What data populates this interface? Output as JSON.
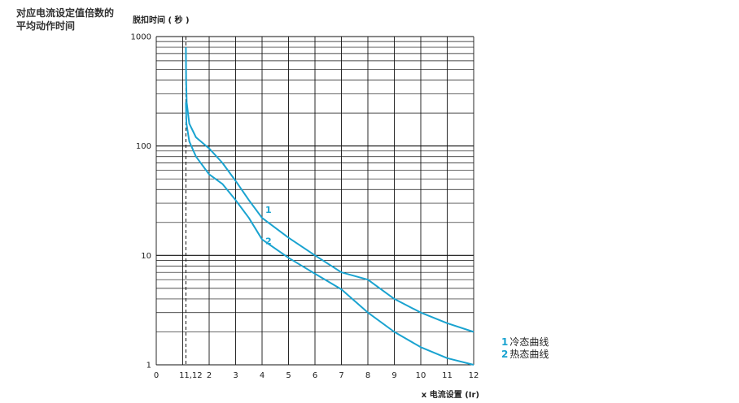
{
  "caption": "对应电流设定值倍数的\n平均动作时间",
  "chart_data": {
    "type": "line",
    "ylabel": "脱扣时间 ( 秒 )",
    "xlabel": "x 电流设置 (Ir)",
    "y_scale": "log",
    "ylim": [
      1,
      1000
    ],
    "xlim": [
      0,
      12
    ],
    "y_ticks": [
      1,
      10,
      100,
      1000
    ],
    "y_tick_labels": [
      "1",
      "10",
      "100",
      "1000"
    ],
    "x_ticks": [
      0,
      1,
      1.12,
      2,
      3,
      4,
      5,
      6,
      7,
      8,
      9,
      10,
      11,
      12
    ],
    "x_tick_labels": [
      "0",
      "1",
      "1,12",
      "2",
      "3",
      "4",
      "5",
      "6",
      "7",
      "8",
      "9",
      "10",
      "11",
      "12"
    ],
    "reference_line_x": 1.12,
    "grid": true,
    "series": [
      {
        "name": "冷态曲线",
        "number": "1",
        "x": [
          1.12,
          1.13,
          1.15,
          1.25,
          1.5,
          2.0,
          2.5,
          3.0,
          3.5,
          4.0,
          5.0,
          6.0,
          7.0,
          8.0,
          9.0,
          10.0,
          11.0,
          12.0
        ],
        "y": [
          800,
          400,
          250,
          160,
          120,
          95,
          70,
          48,
          32,
          22,
          14.5,
          10,
          7,
          6,
          4,
          3,
          2.4,
          2
        ]
      },
      {
        "name": "热态曲线",
        "number": "2",
        "x": [
          1.12,
          1.14,
          1.25,
          1.5,
          2.0,
          2.5,
          3.0,
          3.5,
          4.0,
          5.0,
          6.0,
          7.0,
          8.0,
          9.0,
          10.0,
          11.0,
          12.0
        ],
        "y": [
          250,
          160,
          110,
          80,
          55,
          45,
          32,
          22,
          14,
          9.5,
          6.8,
          4.9,
          3,
          2,
          1.45,
          1.15,
          1
        ]
      }
    ],
    "curve_color": "#1aa3d0"
  }
}
